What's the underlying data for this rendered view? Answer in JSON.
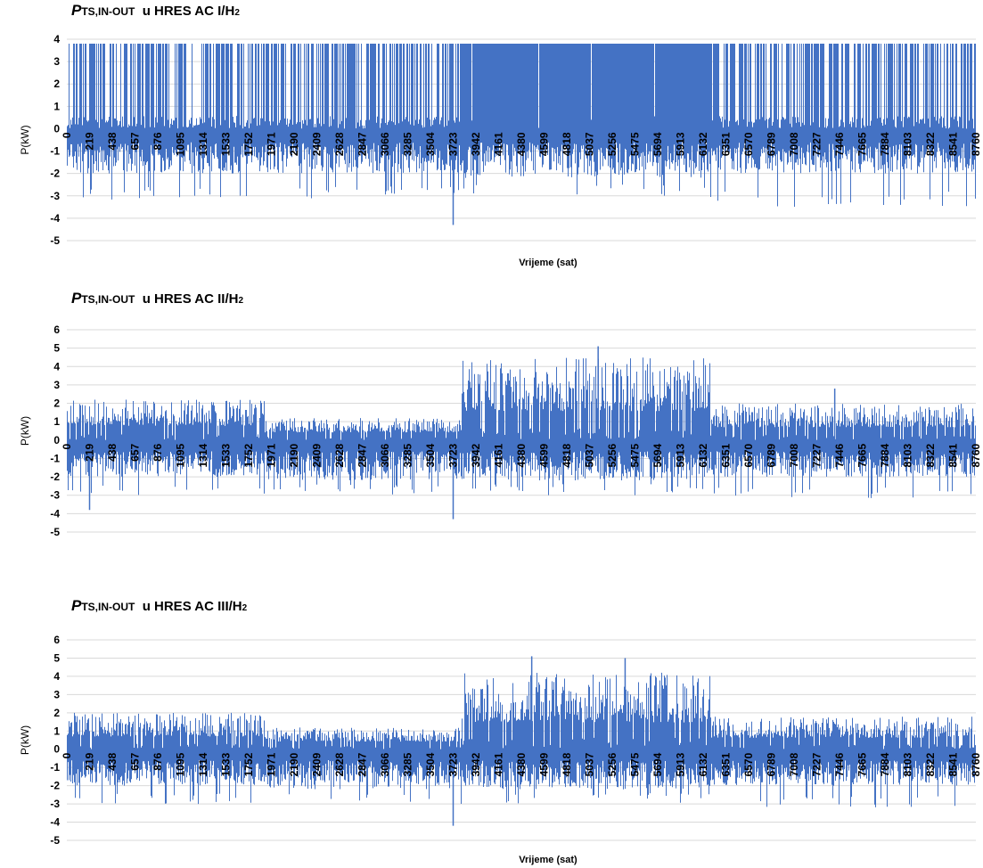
{
  "chart_data": [
    {
      "type": "line",
      "title_parts": {
        "p": "P",
        "sub": "TS,IN-OUT",
        "mid": "u HRES AC I/H",
        "sub2": "2"
      },
      "xlabel": "Vrijeme (sat)",
      "ylabel": "P(kW)",
      "ylim": [
        -5,
        4
      ],
      "yticks": [
        4,
        3,
        2,
        1,
        0,
        -1,
        -2,
        -3,
        -4,
        -5
      ],
      "xlim": [
        0,
        8760
      ],
      "xticks": [
        0,
        219,
        438,
        657,
        876,
        1095,
        1314,
        1533,
        1752,
        1971,
        2190,
        2409,
        2628,
        2847,
        3066,
        3285,
        3504,
        3723,
        3942,
        4161,
        4380,
        4599,
        4818,
        5037,
        5256,
        5475,
        5694,
        5913,
        6132,
        6351,
        6570,
        6789,
        7008,
        7227,
        7446,
        7665,
        7884,
        8103,
        8322,
        8541,
        8760
      ],
      "grid": true,
      "color": "#4472c4",
      "series": [
        {
          "segments": [
            {
              "x": [
                0,
                3800
              ],
              "max": 3.8,
              "min_typ": -2.0,
              "min_ext": -3.2,
              "density": 0.55
            },
            {
              "x": [
                3800,
                6200
              ],
              "max": 3.8,
              "min_typ": -2.2,
              "min_ext": -3.0,
              "density": 0.97
            },
            {
              "x": [
                6200,
                8760
              ],
              "max": 3.8,
              "min_typ": -2.0,
              "min_ext": -3.5,
              "density": 0.6
            }
          ],
          "extremes": [
            {
              "x": 3723,
              "y": -4.3
            }
          ]
        }
      ]
    },
    {
      "type": "line",
      "title_parts": {
        "p": "P",
        "sub": "TS,IN-OUT",
        "mid": "u HRES AC II/H",
        "sub2": "2"
      },
      "xlabel": "Vrijeme(sat)",
      "ylabel": "P(kW)",
      "ylim": [
        -5,
        6
      ],
      "yticks": [
        6,
        5,
        4,
        3,
        2,
        1,
        0,
        -1,
        -2,
        -3,
        -4,
        -5
      ],
      "xlim": [
        0,
        8760
      ],
      "xticks": [
        0,
        219,
        438,
        657,
        876,
        1095,
        1314,
        1533,
        1752,
        1971,
        2190,
        2409,
        2628,
        2847,
        3066,
        3285,
        3504,
        3723,
        3942,
        4161,
        4380,
        4599,
        4818,
        5037,
        5256,
        5475,
        5694,
        5913,
        6132,
        6351,
        6570,
        6789,
        7008,
        7227,
        7446,
        7665,
        7884,
        8103,
        8322,
        8541,
        8760
      ],
      "grid": true,
      "color": "#4472c4",
      "series": [
        {
          "segments": [
            {
              "x": [
                0,
                1900
              ],
              "max": 2.2,
              "min_typ": -2.0,
              "min_ext": -3.0
            },
            {
              "x": [
                1900,
                3800
              ],
              "max": 1.2,
              "min_typ": -2.2,
              "min_ext": -3.0
            },
            {
              "x": [
                3800,
                6200
              ],
              "max": 4.5,
              "min_typ": -2.2,
              "min_ext": -3.0
            },
            {
              "x": [
                6200,
                8760
              ],
              "max": 2.0,
              "min_typ": -2.0,
              "min_ext": -3.2
            }
          ],
          "extremes": [
            {
              "x": 3723,
              "y": -4.3
            },
            {
              "x": 219,
              "y": -3.8
            },
            {
              "x": 5120,
              "y": 5.1
            },
            {
              "x": 7400,
              "y": 2.8
            }
          ]
        }
      ]
    },
    {
      "type": "line",
      "title_parts": {
        "p": "P",
        "sub": "TS,IN-OUT",
        "mid": "u HRES AC III/H",
        "sub2": "2"
      },
      "xlabel": "Vrijeme (sat)",
      "ylabel": "P(kW)",
      "ylim": [
        -5,
        6
      ],
      "yticks": [
        6,
        5,
        4,
        3,
        2,
        1,
        0,
        -1,
        -2,
        -3,
        -4,
        -5
      ],
      "xlim": [
        0,
        8760
      ],
      "xticks": [
        0,
        219,
        438,
        657,
        876,
        1095,
        1314,
        1533,
        1752,
        1971,
        2190,
        2409,
        2628,
        2847,
        3066,
        3285,
        3504,
        3723,
        3942,
        4161,
        4380,
        4599,
        4818,
        5037,
        5256,
        5475,
        5694,
        5913,
        6132,
        6351,
        6570,
        6789,
        7008,
        7227,
        7446,
        7665,
        7884,
        8103,
        8322,
        8541,
        8760
      ],
      "grid": true,
      "color": "#4472c4",
      "series": [
        {
          "segments": [
            {
              "x": [
                0,
                1900
              ],
              "max": 2.0,
              "min_typ": -2.0,
              "min_ext": -3.0
            },
            {
              "x": [
                1900,
                3800
              ],
              "max": 1.2,
              "min_typ": -2.2,
              "min_ext": -3.0
            },
            {
              "x": [
                3800,
                6200
              ],
              "max": 4.2,
              "min_typ": -2.2,
              "min_ext": -3.0
            },
            {
              "x": [
                6200,
                8760
              ],
              "max": 1.8,
              "min_typ": -2.0,
              "min_ext": -3.2
            }
          ],
          "extremes": [
            {
              "x": 3723,
              "y": -4.2
            },
            {
              "x": 4480,
              "y": 5.1
            },
            {
              "x": 5380,
              "y": 5.0
            }
          ]
        }
      ]
    }
  ]
}
